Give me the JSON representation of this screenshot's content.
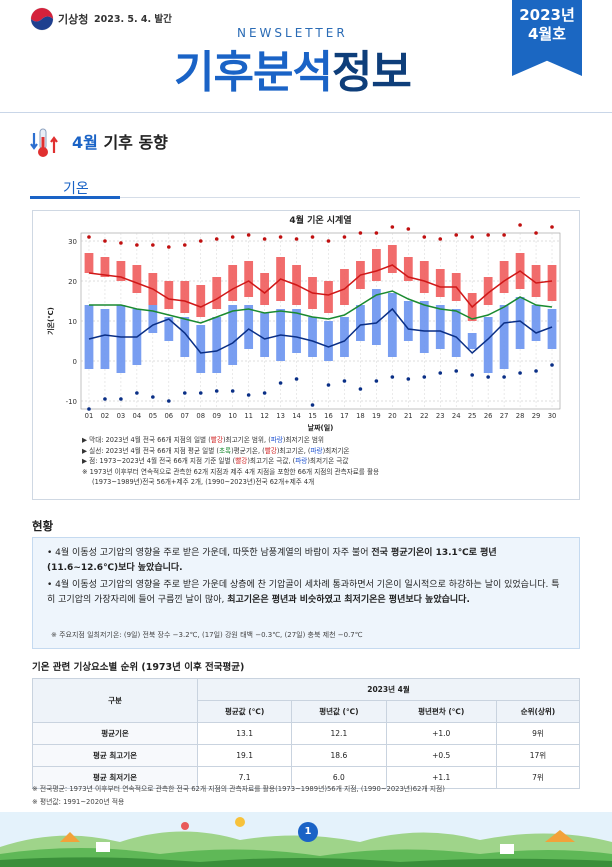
{
  "header": {
    "agency": "기상청",
    "pub_date": "2023. 5. 4. 발간",
    "newsletter_label": "NEWSLETTER",
    "title_part1": "기후분석",
    "title_part2": "정보",
    "ribbon_year": "2023년",
    "ribbon_month": "4월호",
    "colors": {
      "primary": "#1a63c6",
      "dark": "#0e3e7a"
    }
  },
  "section": {
    "month": "4월",
    "title": "기후 동향",
    "icon": "thermometer-icon"
  },
  "subsection": {
    "title": "기온"
  },
  "chart_data": {
    "type": "bar",
    "title": "4월 기온 시계열",
    "xlabel": "날짜(일)",
    "ylabel": "기온(℃)",
    "ylim": [
      -12,
      32
    ],
    "yticks": [
      -10,
      0,
      10,
      20,
      30
    ],
    "categories": [
      "01",
      "02",
      "03",
      "04",
      "05",
      "06",
      "07",
      "08",
      "09",
      "10",
      "11",
      "12",
      "13",
      "14",
      "15",
      "16",
      "17",
      "18",
      "19",
      "20",
      "21",
      "22",
      "23",
      "24",
      "25",
      "26",
      "27",
      "28",
      "29",
      "30"
    ],
    "grid": true,
    "series": [
      {
        "name": "2023년 4월 전국 66개 지점의 일별 최고기온 범위",
        "color": "#f06060",
        "low": [
          22,
          21,
          20,
          17,
          14,
          13,
          12,
          11,
          13,
          15,
          16,
          14,
          15,
          14,
          13,
          12,
          14,
          18,
          20,
          22,
          20,
          17,
          16,
          15,
          10,
          14,
          17,
          18,
          16,
          15
        ],
        "high": [
          27,
          26,
          25,
          24,
          22,
          20,
          20,
          19,
          21,
          24,
          25,
          22,
          26,
          24,
          21,
          20,
          23,
          25,
          28,
          29,
          26,
          25,
          23,
          22,
          17,
          21,
          25,
          27,
          24,
          24
        ]
      },
      {
        "name": "2023년 4월 전국 66개 지점의 일별 최저기온 범위",
        "color": "#6e96f0",
        "low": [
          -2,
          -2,
          -3,
          -1,
          7,
          5,
          1,
          -3,
          -3,
          -1,
          3,
          1,
          0,
          2,
          1,
          0,
          1,
          5,
          4,
          1,
          5,
          2,
          3,
          1,
          3,
          -3,
          -2,
          3,
          5,
          3
        ],
        "high": [
          14,
          13,
          14,
          13,
          14,
          11,
          11,
          9,
          11,
          14,
          14,
          12,
          13,
          13,
          11,
          10,
          11,
          14,
          18,
          17,
          15,
          15,
          14,
          13,
          7,
          11,
          14,
          16,
          14,
          13
        ]
      },
      {
        "name": "평균최고기온",
        "color": "#d01818",
        "values": [
          22,
          21.5,
          21,
          19.5,
          18,
          15.5,
          15,
          13.5,
          15.5,
          18,
          20,
          17,
          20.5,
          19,
          17,
          16.5,
          18,
          21.5,
          22.5,
          24,
          21,
          20,
          18.5,
          18.5,
          13.5,
          17,
          20,
          22.5,
          19.5,
          20
        ]
      },
      {
        "name": "평균기온",
        "color": "#1a8a30",
        "values": [
          14,
          14,
          14,
          13,
          12.5,
          11.5,
          10.5,
          9.5,
          11,
          12.5,
          13,
          12,
          12.5,
          12,
          11,
          10.5,
          11.5,
          14,
          16.5,
          17.5,
          15.5,
          14,
          13,
          12.5,
          10.5,
          11.5,
          13.5,
          16,
          14,
          13.5
        ]
      },
      {
        "name": "평균최저기온",
        "color": "#0a2f86",
        "values": [
          5.5,
          6.5,
          6,
          6,
          9,
          10.5,
          7,
          2,
          2.5,
          4.5,
          8,
          5.5,
          6.5,
          6,
          5,
          3.5,
          5,
          9,
          9.5,
          13,
          8,
          7.5,
          7.5,
          6,
          2,
          5.5,
          9.5,
          10,
          7,
          8.5
        ]
      },
      {
        "name": "1973~2023년 4월 전국 66개 지점 일별 최고기온 극값",
        "color": "#c01010",
        "type": "scatter",
        "values": [
          31,
          30,
          29.5,
          29,
          29,
          28.5,
          29,
          30,
          30.5,
          31,
          31.5,
          30.5,
          31,
          30.5,
          31,
          30,
          31,
          32,
          32,
          33.5,
          33,
          31,
          30.5,
          31.5,
          31,
          31.5,
          31.5,
          34,
          32,
          33.5
        ]
      },
      {
        "name": "1973~2023년 4월 전국 66개 지점 일별 최저기온 극값",
        "color": "#0a2f86",
        "type": "scatter",
        "values": [
          -12,
          -9.5,
          -9.5,
          -8,
          -9,
          -10,
          -8,
          -8,
          -7.5,
          -7.5,
          -8.5,
          -8,
          -5.5,
          -4.5,
          -11,
          -6,
          -5,
          -7,
          -5,
          -4,
          -4.5,
          -4,
          -3,
          -2.5,
          -3.5,
          -4,
          -4,
          -3,
          -2.5,
          -1
        ]
      }
    ]
  },
  "chart_notes": {
    "bar_prefix": "▶ 막대: 2023년 4월 전국 66개 지점의 일별 (",
    "bar_red": "빨강",
    "bar_mid": ")최고기온 범위, (",
    "bar_blue": "파랑",
    "bar_suffix": ")최저기온 범위",
    "line_prefix": "▶ 실선: 2023년 4월 전국 66개 지점 평균 일별 (",
    "line_green": "초록",
    "line_mid1": ")평균기온, (",
    "line_red": "빨강",
    "line_mid2": ")최고기온, (",
    "line_blue": "파랑",
    "line_suffix": ")최저기온",
    "dot_prefix": "▶ 점: 1973~2023년 4월 전국 66개 지점 기준 일별 (",
    "dot_red": "빨강",
    "dot_mid": ")최고기온 극값, (",
    "dot_blue": "파랑",
    "dot_suffix": ")최저기온 극값",
    "note1": "※ 1973년 이후부터 연속적으로 관측한 62개 지점과 제주 4개 지점을 포함한 66개 지점의 관측자료를 활용",
    "note2": "(1973~1989년)전국 56개+제주 2개, (1990~2023년)전국 62개+제주 4개"
  },
  "status": {
    "title": "현황",
    "bullet1_a": "4월 이동성 고기압의 영향을 주로 받은 가운데, 따뜻한 남풍계열의 바람이 자주 불어 ",
    "bullet1_b": "전국 평균기온이 13.1℃로 평년(11.6~12.6℃)보다 높았습니다.",
    "bullet2_a": "4월 이동성 고기압의 영향을 주로 받은 가운데 상층에 찬 기압골이 세차례 통과하면서 기온이 일시적으로 하강하는 날이 있었습니다. 특히 고기압의 가장자리에 들어 구름낀 날이 많아, ",
    "bullet2_b": "최고기온은 평년과 비슷하였고 최저기온은 평년보다 높았습니다.",
    "note": "※ 주요지점 일최저기온: (9일) 전북 장수 −3.2℃, (17일) 강원 태백 −0.3℃, (27일) 충북 제천 −0.7℃"
  },
  "rank_table": {
    "title": "기온 관련 기상요소별 순위 (1973년 이후 전국평균)",
    "col_group": "구분",
    "period": "2023년 4월",
    "headers": [
      "평균값 (℃)",
      "평년값 (℃)",
      "평년편차 (℃)",
      "순위(상위)"
    ],
    "rows": [
      {
        "label": "평균기온",
        "cells": [
          "13.1",
          "12.1",
          "+1.0",
          "9위"
        ]
      },
      {
        "label": "평균 최고기온",
        "cells": [
          "19.1",
          "18.6",
          "+0.5",
          "17위"
        ]
      },
      {
        "label": "평균 최저기온",
        "cells": [
          "7.1",
          "6.0",
          "+1.1",
          "7위"
        ]
      }
    ]
  },
  "footnotes": {
    "note1": "※ 전국평균: 1973년 이후부터 연속적으로 관측한 전국 62개 지점의 관측자료를 활용(1973~1989년)56개 지점, (1990~2023년)62개 지점)",
    "note2": "※ 평년값: 1991~2020년 적용"
  },
  "page_number": "1"
}
